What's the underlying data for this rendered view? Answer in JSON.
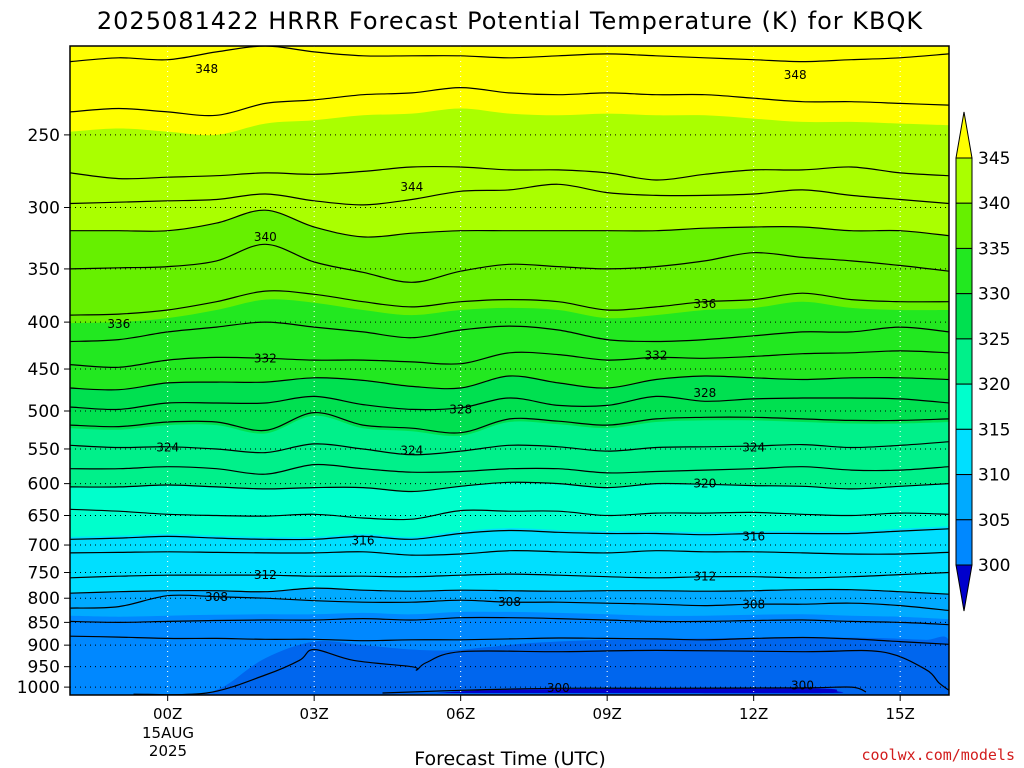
{
  "title": "2025081422 HRRR Forecast Potential Temperature (K) for KBQK",
  "credit": "coolwx.com/models",
  "colors": {
    "credit": "#d21c1c",
    "ground": "#a0522d",
    "contour": "#000000"
  },
  "chart_data": {
    "type": "contour",
    "xlabel": "Forecast Time (UTC)",
    "x_ticks": [
      "00Z",
      "03Z",
      "06Z",
      "09Z",
      "12Z",
      "15Z"
    ],
    "x_date_lines": [
      "15AUG",
      "2025"
    ],
    "xlim_hours": [
      -2,
      16
    ],
    "y_axis": "pressure (hPa), inverted log scale",
    "y_ticks": [
      "250",
      "300",
      "350",
      "400",
      "450",
      "500",
      "550",
      "600",
      "650",
      "700",
      "750",
      "800",
      "850",
      "900",
      "950",
      "1000"
    ],
    "ylim": [
      1020,
      200
    ],
    "colorbar": {
      "labels": [
        "345",
        "340",
        "335",
        "330",
        "325",
        "320",
        "315",
        "310",
        "305",
        "300"
      ],
      "levels": [
        300,
        305,
        310,
        315,
        320,
        325,
        330,
        335,
        340,
        345
      ],
      "colors": [
        "#0000cc",
        "#0044dd",
        "#0066ee",
        "#0088ff",
        "#00aaff",
        "#00dfff",
        "#00ffcc",
        "#00f08a",
        "#00e050",
        "#22e820",
        "#66f000",
        "#aaff00",
        "#ffff00"
      ],
      "extend": "both"
    },
    "contour_interval": 2,
    "contour_labels": [
      {
        "value": "348",
        "x": 0.8,
        "y": 212
      },
      {
        "value": "348",
        "x": 12.85,
        "y": 215
      },
      {
        "value": "344",
        "x": 5.0,
        "y": 285
      },
      {
        "value": "340",
        "x": 2.0,
        "y": 323
      },
      {
        "value": "336",
        "x": -1.0,
        "y": 402
      },
      {
        "value": "336",
        "x": 11.0,
        "y": 382
      },
      {
        "value": "332",
        "x": 2.0,
        "y": 438
      },
      {
        "value": "332",
        "x": 10.0,
        "y": 435
      },
      {
        "value": "328",
        "x": 6.0,
        "y": 498
      },
      {
        "value": "328",
        "x": 11.0,
        "y": 478
      },
      {
        "value": "324",
        "x": 0.0,
        "y": 548
      },
      {
        "value": "324",
        "x": 5.0,
        "y": 552
      },
      {
        "value": "324",
        "x": 12.0,
        "y": 548
      },
      {
        "value": "320",
        "x": 11.0,
        "y": 600
      },
      {
        "value": "316",
        "x": 4.0,
        "y": 692
      },
      {
        "value": "316",
        "x": 12.0,
        "y": 685
      },
      {
        "value": "312",
        "x": 2.0,
        "y": 755
      },
      {
        "value": "312",
        "x": 11.0,
        "y": 758
      },
      {
        "value": "308",
        "x": 1.0,
        "y": 798
      },
      {
        "value": "308",
        "x": 7.0,
        "y": 808
      },
      {
        "value": "308",
        "x": 12.0,
        "y": 813
      },
      {
        "value": "300",
        "x": 8.0,
        "y": 1002
      },
      {
        "value": "300",
        "x": 13.0,
        "y": 996
      }
    ],
    "contour_lines": [
      {
        "level": 348,
        "p": [
          208,
          206,
          207,
          203,
          200,
          203,
          205,
          205,
          205,
          206,
          205,
          204,
          205,
          206,
          207,
          208,
          207,
          206,
          204
        ]
      },
      {
        "level": 346,
        "p": [
          236,
          234,
          236,
          238,
          231,
          229,
          226,
          225,
          222,
          225,
          226,
          225,
          226,
          226,
          228,
          230,
          230,
          231,
          232
        ]
      },
      {
        "level": 344,
        "p": [
          275,
          279,
          278,
          277,
          275,
          276,
          274,
          271,
          271,
          273,
          273,
          275,
          280,
          276,
          273,
          273,
          271,
          275,
          277
        ]
      },
      {
        "level": 342,
        "p": [
          297,
          296,
          295,
          294,
          290,
          295,
          298,
          294,
          288,
          287,
          283,
          289,
          291,
          291,
          290,
          287,
          291,
          294,
          297
        ]
      },
      {
        "level": 340,
        "p": [
          318,
          318,
          318,
          312,
          302,
          315,
          323,
          320,
          318,
          318,
          318,
          318,
          318,
          316,
          315,
          315,
          318,
          318,
          322
        ]
      },
      {
        "level": 338,
        "p": [
          350,
          349,
          348,
          343,
          329,
          344,
          353,
          362,
          352,
          346,
          348,
          350,
          348,
          343,
          336,
          340,
          343,
          347,
          352
        ]
      },
      {
        "level": 336,
        "p": [
          393,
          392,
          388,
          380,
          370,
          373,
          380,
          385,
          380,
          378,
          380,
          388,
          385,
          380,
          378,
          372,
          378,
          380,
          380
        ]
      },
      {
        "level": 334,
        "p": [
          420,
          418,
          410,
          405,
          400,
          405,
          410,
          416,
          408,
          404,
          408,
          418,
          420,
          418,
          414,
          410,
          410,
          405,
          410
        ]
      },
      {
        "level": 332,
        "p": [
          445,
          448,
          440,
          437,
          438,
          440,
          440,
          442,
          444,
          432,
          434,
          440,
          437,
          438,
          436,
          433,
          432,
          430,
          432
        ]
      },
      {
        "level": 330,
        "p": [
          472,
          474,
          466,
          465,
          465,
          460,
          463,
          470,
          472,
          458,
          466,
          472,
          462,
          458,
          460,
          462,
          460,
          460,
          462
        ]
      },
      {
        "level": 328,
        "p": [
          495,
          498,
          490,
          490,
          490,
          482,
          492,
          498,
          496,
          484,
          493,
          493,
          482,
          488,
          485,
          484,
          484,
          485,
          490
        ]
      },
      {
        "level": 326,
        "p": [
          518,
          520,
          514,
          514,
          525,
          502,
          518,
          522,
          528,
          510,
          513,
          518,
          510,
          508,
          508,
          510,
          512,
          512,
          510
        ]
      },
      {
        "level": 324,
        "p": [
          545,
          548,
          547,
          550,
          555,
          543,
          550,
          558,
          553,
          545,
          547,
          553,
          548,
          547,
          546,
          544,
          548,
          545,
          540
        ]
      },
      {
        "level": 322,
        "p": [
          578,
          578,
          575,
          578,
          586,
          572,
          578,
          583,
          582,
          578,
          578,
          584,
          582,
          580,
          578,
          575,
          580,
          580,
          575
        ]
      },
      {
        "level": 320,
        "p": [
          605,
          605,
          602,
          605,
          608,
          606,
          606,
          612,
          604,
          598,
          600,
          606,
          600,
          601,
          603,
          604,
          608,
          604,
          600
        ]
      },
      {
        "level": 318,
        "p": [
          640,
          643,
          648,
          650,
          651,
          648,
          654,
          656,
          642,
          643,
          643,
          650,
          646,
          646,
          645,
          648,
          650,
          646,
          648
        ]
      },
      {
        "level": 316,
        "p": [
          690,
          688,
          685,
          688,
          690,
          690,
          685,
          690,
          680,
          675,
          678,
          680,
          680,
          682,
          680,
          680,
          680,
          676,
          672
        ]
      },
      {
        "level": 314,
        "p": [
          714,
          713,
          712,
          713,
          714,
          714,
          712,
          718,
          716,
          710,
          712,
          714,
          710,
          712,
          712,
          714,
          716,
          716,
          713
        ]
      },
      {
        "level": 312,
        "p": [
          760,
          757,
          755,
          755,
          755,
          757,
          757,
          758,
          755,
          753,
          755,
          758,
          760,
          758,
          758,
          760,
          758,
          754,
          750
        ]
      },
      {
        "level": 310,
        "p": [
          790,
          787,
          785,
          785,
          787,
          780,
          784,
          786,
          784,
          785,
          786,
          785,
          785,
          786,
          785,
          783,
          783,
          787,
          792
        ]
      },
      {
        "level": 308,
        "p": [
          820,
          817,
          795,
          797,
          800,
          805,
          808,
          808,
          804,
          808,
          808,
          810,
          812,
          815,
          812,
          812,
          810,
          815,
          825
        ]
      },
      {
        "level": 306,
        "p": [
          848,
          850,
          848,
          846,
          845,
          845,
          842,
          845,
          840,
          840,
          842,
          845,
          848,
          848,
          846,
          845,
          848,
          850,
          855
        ]
      },
      {
        "level": 304,
        "p": [
          880,
          882,
          885,
          885,
          887,
          887,
          890,
          888,
          888,
          886,
          884,
          885,
          886,
          888,
          885,
          883,
          886,
          892,
          898
        ]
      }
    ],
    "contour_302": {
      "x": [
        -0.7,
        0.8,
        2.0,
        2.7,
        3.0,
        3.8,
        5.0,
        5.1,
        5.3,
        6.0,
        8.0,
        10.0,
        13.0,
        14.6,
        15.5,
        15.8,
        16.0
      ],
      "p": [
        1018,
        1015,
        970,
        935,
        910,
        935,
        950,
        958,
        940,
        915,
        915,
        912,
        915,
        915,
        955,
        990,
        1008
      ]
    },
    "contour_300": {
      "x": [
        4.4,
        6.0,
        8.0,
        10.0,
        13.0,
        14.0,
        14.3
      ],
      "p": [
        1015,
        1008,
        1003,
        1003,
        1002,
        1000,
        1012
      ]
    },
    "fill_300": {
      "x": [
        5.5,
        6.5,
        8.0,
        10.0,
        12.0,
        13.5,
        13.7,
        13.5,
        10.0,
        8.0,
        6.5,
        5.5
      ],
      "p": [
        1015,
        1008,
        1005,
        1004,
        1004,
        1004,
        1010,
        1015,
        1015,
        1015,
        1015,
        1015
      ]
    },
    "fill_305": {
      "x": [
        0.7,
        1.2,
        2.0,
        3.0,
        4.0,
        5.0,
        5.8,
        6.5,
        7.5,
        9.0,
        11.0,
        13.0,
        14.5,
        15.5,
        16.0,
        16.0,
        0.7
      ],
      "p": [
        1020,
        995,
        930,
        892,
        900,
        910,
        912,
        905,
        895,
        888,
        885,
        883,
        884,
        888,
        890,
        1020,
        1020
      ]
    },
    "ground_from": 1000
  }
}
